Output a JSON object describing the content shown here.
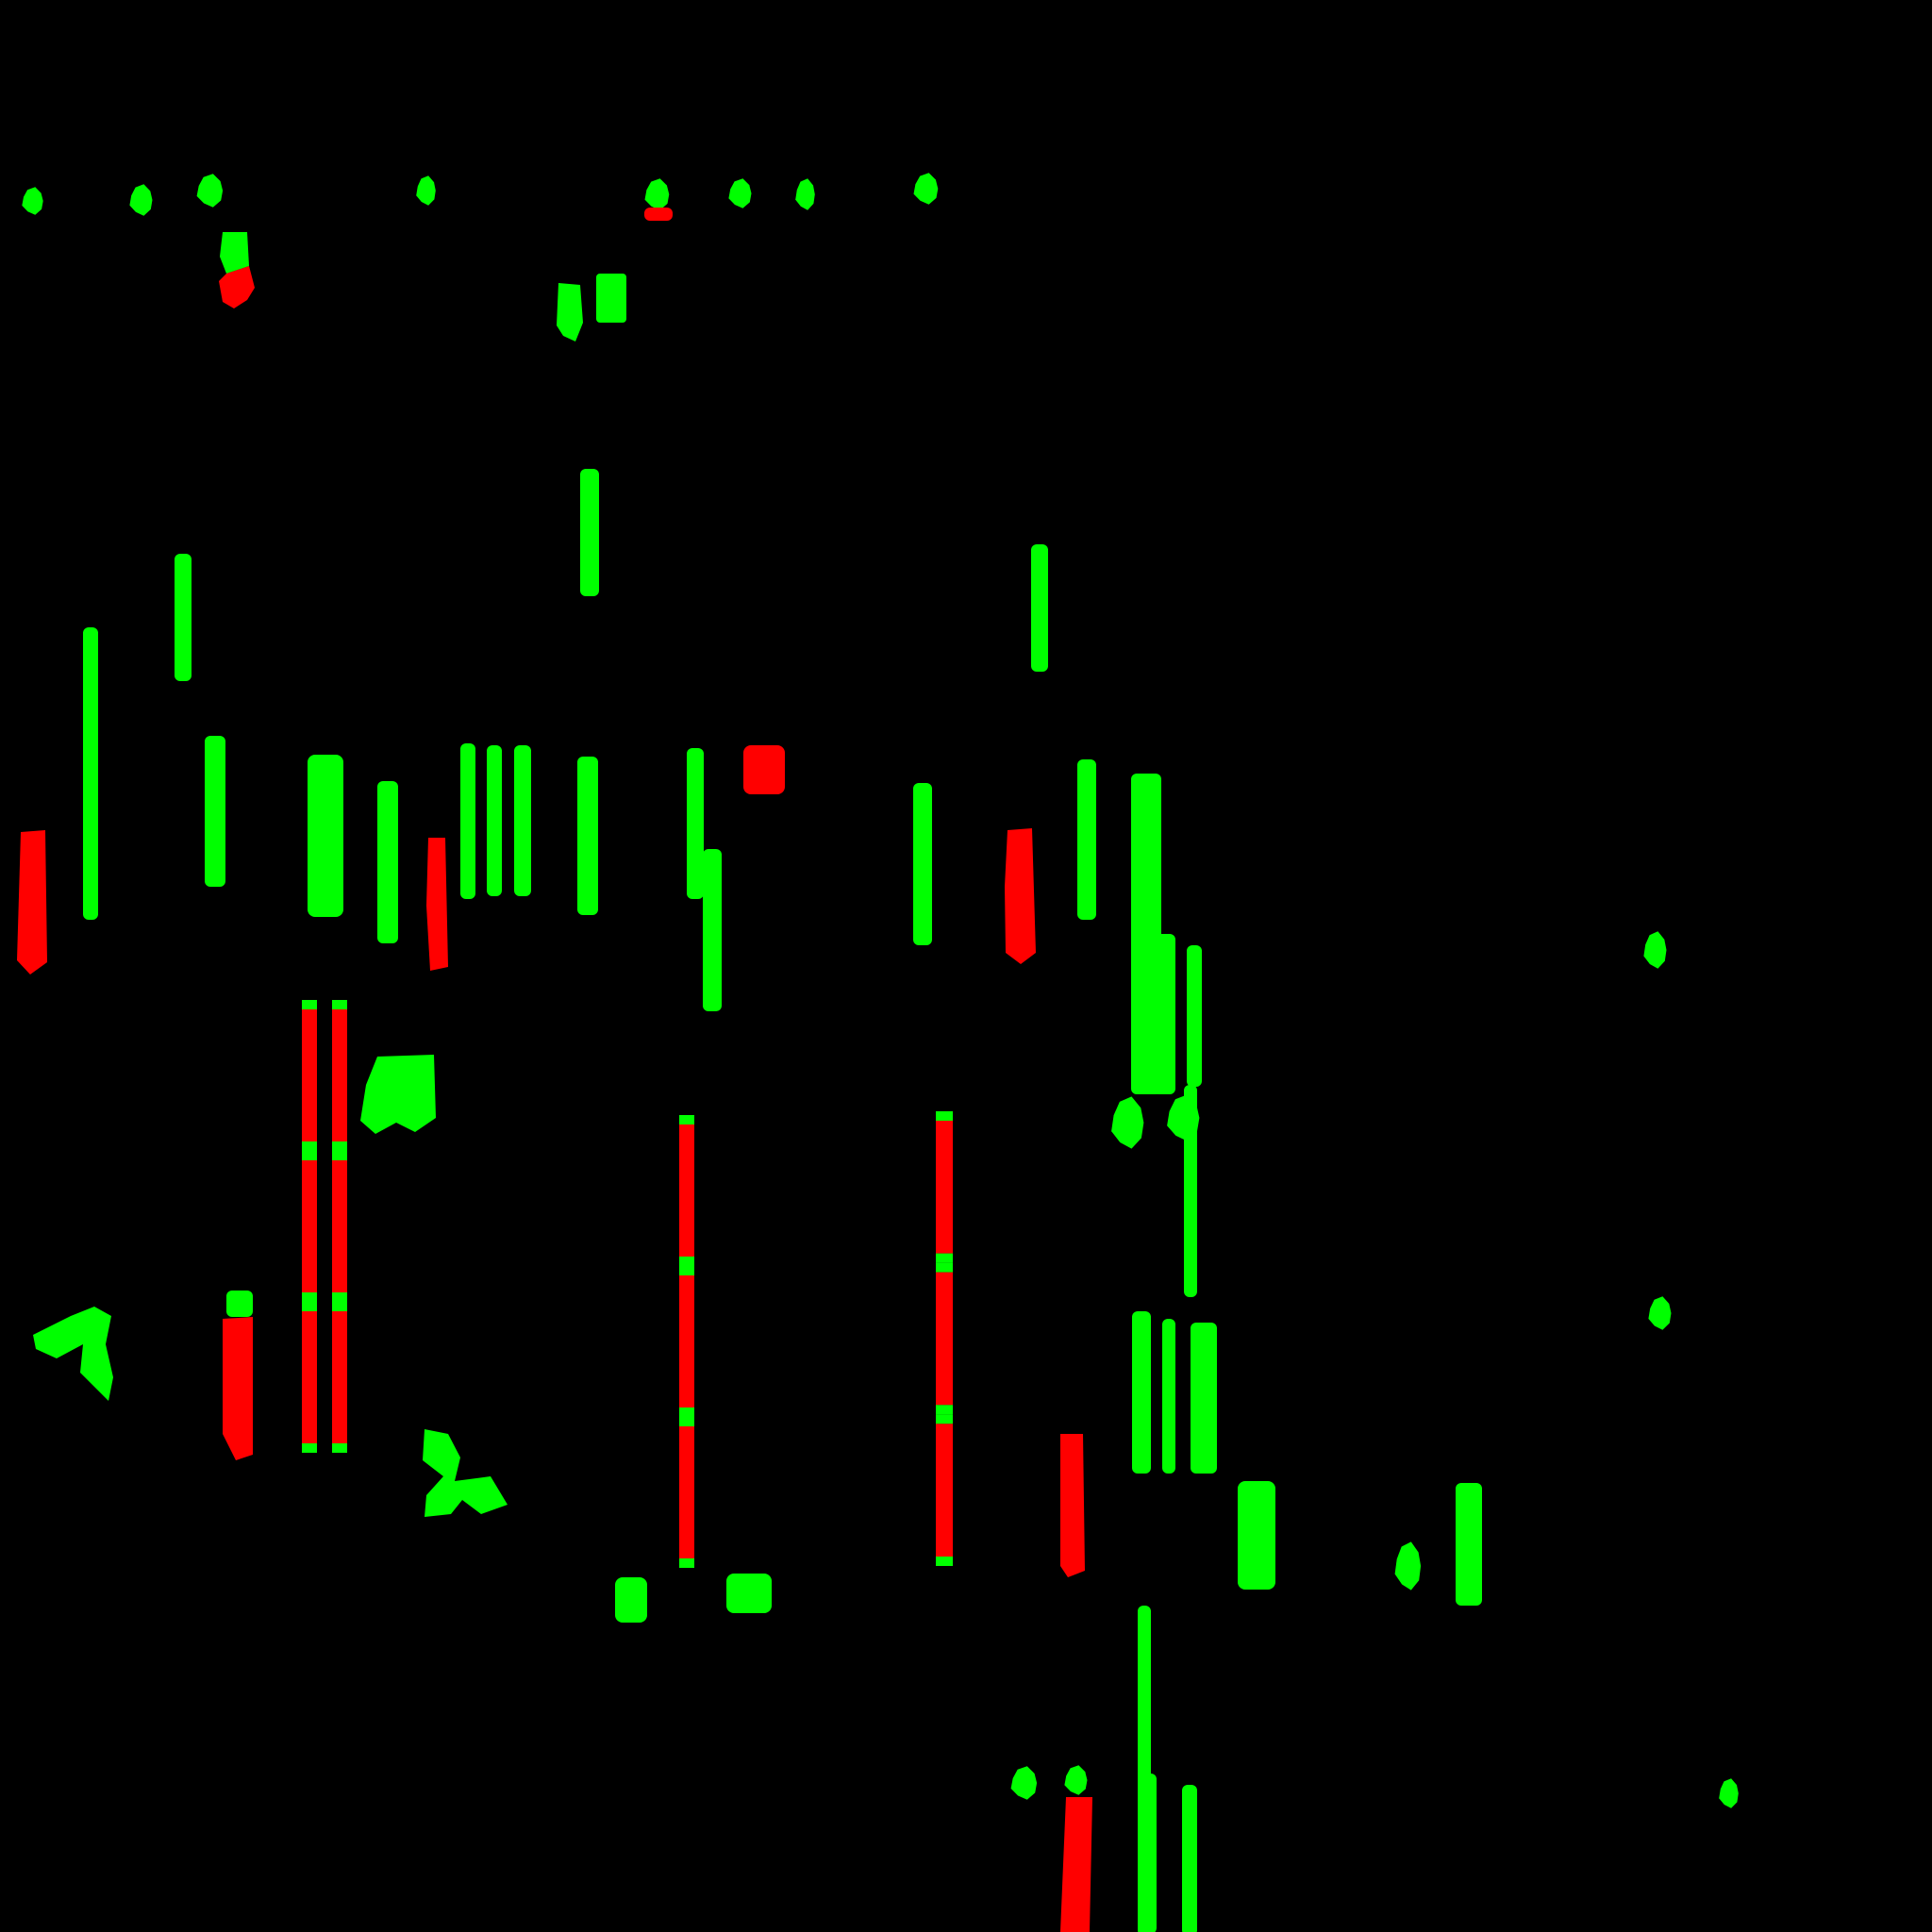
{
  "image": {
    "kind": "segmentation-mask",
    "background_color": "#000000",
    "class_colors": {
      "green": "#00ff00",
      "red": "#ff0000"
    },
    "text_visible": false
  }
}
